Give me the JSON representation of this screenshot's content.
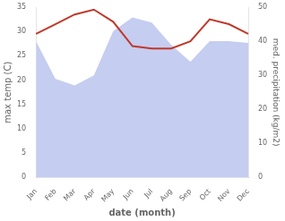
{
  "chart_data": {
    "type": "line",
    "categories": [
      "Jan",
      "Feb",
      "Mar",
      "Apr",
      "May",
      "Jun",
      "Jul",
      "Aug",
      "Sep",
      "Oct",
      "Nov",
      "Dec"
    ],
    "xlabel": "date (month)",
    "ylabel": "max temp (C)",
    "y2label": "med. precipitation (kg/m2)",
    "series": [
      {
        "type": "line",
        "color": "#c0392b",
        "values": [
          29.5,
          31.5,
          33.5,
          34.5,
          32.0,
          27.0,
          26.5,
          26.5,
          28.0,
          32.5,
          31.5,
          29.5
        ]
      },
      {
        "type": "area",
        "color": "#c5cdf0",
        "axis": "y2",
        "values": [
          40.0,
          29.0,
          27.0,
          30.0,
          43.0,
          47.0,
          45.5,
          39.0,
          34.0,
          40.0,
          40.0,
          39.5
        ]
      }
    ],
    "ylim": [
      0,
      35
    ],
    "yticks": [
      0,
      5,
      10,
      15,
      20,
      25,
      30,
      35
    ],
    "y2lim": [
      0,
      50
    ],
    "y2ticks": [
      0,
      10,
      20,
      30,
      40,
      50
    ],
    "grid": false
  }
}
